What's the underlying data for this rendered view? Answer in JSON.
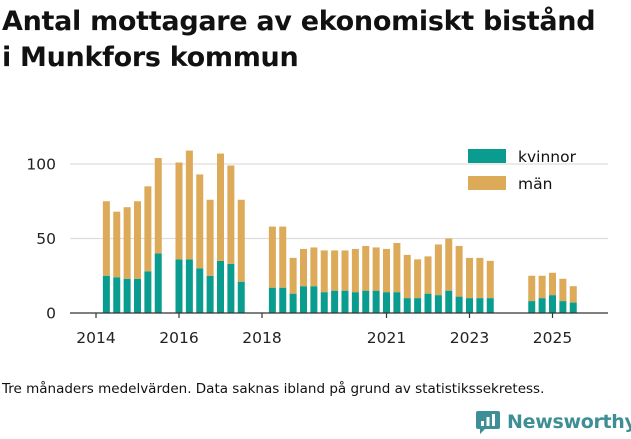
{
  "header": {
    "title_line1": "Antal mottagare av ekonomiskt bistånd",
    "title_line2": "i Munkfors kommun"
  },
  "footer": {
    "caption": "Tre månaders medelvärden. Data saknas ibland på grund av statistikssekretess.",
    "brand": "Newsworthy"
  },
  "colors": {
    "kvinnor": "#0a9d8f",
    "man": "#dcaa58",
    "grid": "#dddddd",
    "axis": "#333333",
    "brand": "#3d8f95"
  },
  "chart_data": {
    "type": "bar",
    "stacked": true,
    "ylim": [
      0,
      110
    ],
    "yticks": [
      0,
      50,
      100
    ],
    "xticks": [
      {
        "label": "2014",
        "year": 2014.0
      },
      {
        "label": "2016",
        "year": 2016.0
      },
      {
        "label": "2018",
        "year": 2018.0
      },
      {
        "label": "2021",
        "year": 2021.0
      },
      {
        "label": "2023",
        "year": 2023.0
      },
      {
        "label": "2025",
        "year": 2025.0
      }
    ],
    "legend": {
      "position": "top-right",
      "entries": [
        "kvinnor",
        "män"
      ]
    },
    "series": [
      {
        "name": "kvinnor",
        "color_key": "kvinnor"
      },
      {
        "name": "män",
        "color_key": "man"
      }
    ],
    "bars": [
      {
        "t": 2014.25,
        "kvinnor": 25,
        "man": 50
      },
      {
        "t": 2014.5,
        "kvinnor": 24,
        "man": 44
      },
      {
        "t": 2014.75,
        "kvinnor": 23,
        "man": 48
      },
      {
        "t": 2015.0,
        "kvinnor": 23,
        "man": 52
      },
      {
        "t": 2015.25,
        "kvinnor": 28,
        "man": 57
      },
      {
        "t": 2015.5,
        "kvinnor": 40,
        "man": 64
      },
      {
        "t": 2016.0,
        "kvinnor": 36,
        "man": 65
      },
      {
        "t": 2016.25,
        "kvinnor": 36,
        "man": 73
      },
      {
        "t": 2016.5,
        "kvinnor": 30,
        "man": 63
      },
      {
        "t": 2016.75,
        "kvinnor": 25,
        "man": 51
      },
      {
        "t": 2017.0,
        "kvinnor": 35,
        "man": 72
      },
      {
        "t": 2017.25,
        "kvinnor": 33,
        "man": 66
      },
      {
        "t": 2017.5,
        "kvinnor": 21,
        "man": 55
      },
      {
        "t": 2018.25,
        "kvinnor": 17,
        "man": 41
      },
      {
        "t": 2018.5,
        "kvinnor": 17,
        "man": 41
      },
      {
        "t": 2018.75,
        "kvinnor": 13,
        "man": 24
      },
      {
        "t": 2019.0,
        "kvinnor": 18,
        "man": 25
      },
      {
        "t": 2019.25,
        "kvinnor": 18,
        "man": 26
      },
      {
        "t": 2019.5,
        "kvinnor": 14,
        "man": 28
      },
      {
        "t": 2019.75,
        "kvinnor": 15,
        "man": 27
      },
      {
        "t": 2020.0,
        "kvinnor": 15,
        "man": 27
      },
      {
        "t": 2020.25,
        "kvinnor": 14,
        "man": 29
      },
      {
        "t": 2020.5,
        "kvinnor": 15,
        "man": 30
      },
      {
        "t": 2020.75,
        "kvinnor": 15,
        "man": 29
      },
      {
        "t": 2021.0,
        "kvinnor": 14,
        "man": 29
      },
      {
        "t": 2021.25,
        "kvinnor": 14,
        "man": 33
      },
      {
        "t": 2021.5,
        "kvinnor": 10,
        "man": 29
      },
      {
        "t": 2021.75,
        "kvinnor": 10,
        "man": 26
      },
      {
        "t": 2022.0,
        "kvinnor": 13,
        "man": 25
      },
      {
        "t": 2022.25,
        "kvinnor": 12,
        "man": 34
      },
      {
        "t": 2022.5,
        "kvinnor": 15,
        "man": 35
      },
      {
        "t": 2022.75,
        "kvinnor": 11,
        "man": 34
      },
      {
        "t": 2023.0,
        "kvinnor": 10,
        "man": 27
      },
      {
        "t": 2023.25,
        "kvinnor": 10,
        "man": 27
      },
      {
        "t": 2023.5,
        "kvinnor": 10,
        "man": 25
      },
      {
        "t": 2024.5,
        "kvinnor": 8,
        "man": 17
      },
      {
        "t": 2024.75,
        "kvinnor": 10,
        "man": 15
      },
      {
        "t": 2025.0,
        "kvinnor": 12,
        "man": 15
      },
      {
        "t": 2025.25,
        "kvinnor": 8,
        "man": 15
      },
      {
        "t": 2025.5,
        "kvinnor": 7,
        "man": 11
      }
    ]
  }
}
